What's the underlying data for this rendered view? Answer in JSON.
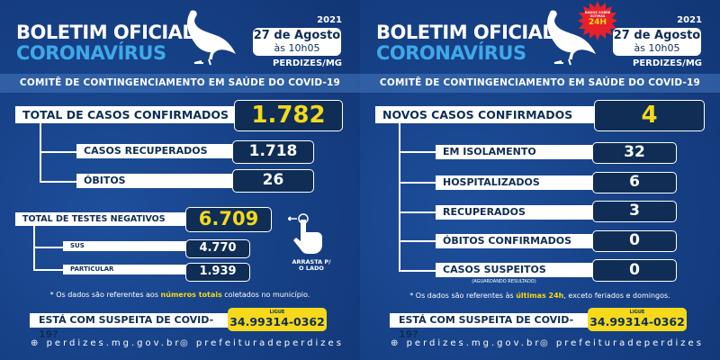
{
  "header": {
    "title_line1": "BOLETIM OFICIAL",
    "title_line2": "CORONAVÍRUS",
    "year": "2021",
    "date": "27 de Agosto",
    "time": "às 10h05",
    "city": "PERDIZES/MG",
    "committee": "COMITÊ DE CONTINGENCIAMENTO EM SAÚDE DO COVID-19"
  },
  "colors": {
    "background": "#174288",
    "box": "#0f2d55",
    "accent_yellow": "#f5d91a",
    "accent_blue": "#3fa9e8",
    "badge_red": "#e8202a"
  },
  "left": {
    "total": {
      "label": "TOTAL DE CASOS CONFIRMADOS",
      "value": "1.782"
    },
    "sub": [
      {
        "label": "CASOS RECUPERADOS",
        "value": "1.718"
      },
      {
        "label": "ÓBITOS",
        "value": "26"
      }
    ],
    "tests": {
      "label": "TOTAL DE TESTES NEGATIVOS",
      "value": "6.709",
      "sub": [
        {
          "label": "SUS",
          "value": "4.770"
        },
        {
          "label": "PARTICULAR",
          "value": "1.939"
        }
      ]
    },
    "swipe": {
      "icon": "hand-swipe-icon",
      "line1": "ARRASTA P/",
      "line2": "O LADO"
    },
    "note_pre": "* Os dados são referentes aos ",
    "note_hl": "números totais",
    "note_post": " coletados no município."
  },
  "right": {
    "badge": {
      "line1": "DADOS SOBRE",
      "line2": "ÚLTIMAS",
      "line3": "24H"
    },
    "total": {
      "label": "NOVOS CASOS CONFIRMADOS",
      "value": "4"
    },
    "sub": [
      {
        "label": "EM ISOLAMENTO",
        "value": "32"
      },
      {
        "label": "HOSPITALIZADOS",
        "value": "6"
      },
      {
        "label": "RECUPERADOS",
        "value": "3"
      },
      {
        "label": "ÓBITOS CONFIRMADOS",
        "value": "0"
      },
      {
        "label": "CASOS SUSPEITOS",
        "value": "0",
        "caption": "(AGUARDANDO RESULTADO)"
      }
    ],
    "note_pre": "* Os dados são referentes às ",
    "note_hl": "últimas 24h",
    "note_post": ", exceto feriados e domingos."
  },
  "contact": {
    "question": "ESTÁ COM SUSPEITA DE COVID-19?",
    "call_label": "LIGUE",
    "phone": "34.99314-0362"
  },
  "footer": {
    "website": "perdizes.mg.gov.br",
    "instagram": "prefeituradeperdizes"
  }
}
